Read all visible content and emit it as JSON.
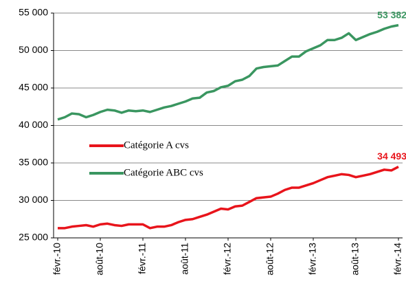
{
  "chart_data": {
    "type": "line",
    "categories": [
      "févr.-10",
      null,
      null,
      null,
      null,
      null,
      "août-10",
      null,
      null,
      null,
      null,
      null,
      "févr.-11",
      null,
      null,
      null,
      null,
      null,
      "août-11",
      null,
      null,
      null,
      null,
      null,
      "févr.-12",
      null,
      null,
      null,
      null,
      null,
      "août-12",
      null,
      null,
      null,
      null,
      null,
      "févr.-13",
      null,
      null,
      null,
      null,
      null,
      "août-13",
      null,
      null,
      null,
      null,
      null,
      "févr.-14"
    ],
    "series": [
      {
        "name": "Catégorie A cvs",
        "color": "#e8141b",
        "values": [
          26300,
          26300,
          26500,
          26600,
          26700,
          26500,
          26800,
          26900,
          26700,
          26600,
          26800,
          26800,
          26800,
          26300,
          26500,
          26500,
          26700,
          27100,
          27400,
          27500,
          27800,
          28100,
          28500,
          28900,
          28800,
          29200,
          29300,
          29800,
          30300,
          30400,
          30500,
          30900,
          31400,
          31700,
          31700,
          32000,
          32300,
          32700,
          33100,
          33300,
          33500,
          33400,
          33100,
          33300,
          33500,
          33800,
          34100,
          34000,
          34493
        ],
        "value_labels": [
          null,
          null,
          null,
          null,
          null,
          null,
          null,
          null,
          null,
          null,
          null,
          null,
          null,
          null,
          null,
          null,
          null,
          null,
          null,
          null,
          null,
          null,
          null,
          null,
          null,
          null,
          null,
          null,
          null,
          null,
          null,
          null,
          null,
          null,
          null,
          null,
          null,
          null,
          null,
          null,
          null,
          null,
          null,
          null,
          null,
          null,
          null,
          null,
          "34 493"
        ]
      },
      {
        "name": "Catégorie ABC cvs",
        "color": "#3a9660",
        "values": [
          40800,
          41100,
          41600,
          41500,
          41100,
          41400,
          41800,
          42100,
          42000,
          41700,
          42000,
          41900,
          42000,
          41800,
          42100,
          42400,
          42600,
          42900,
          43200,
          43600,
          43700,
          44400,
          44600,
          45100,
          45300,
          45900,
          46100,
          46600,
          47600,
          47800,
          47900,
          48000,
          48600,
          49200,
          49200,
          49900,
          50300,
          50700,
          51400,
          51400,
          51700,
          52300,
          51400,
          51800,
          52200,
          52500,
          52900,
          53200,
          53382
        ],
        "value_labels": [
          null,
          null,
          null,
          null,
          null,
          null,
          null,
          null,
          null,
          null,
          null,
          null,
          null,
          null,
          null,
          null,
          null,
          null,
          null,
          null,
          null,
          null,
          null,
          null,
          null,
          null,
          null,
          null,
          null,
          null,
          null,
          null,
          null,
          null,
          null,
          null,
          null,
          null,
          null,
          null,
          null,
          null,
          null,
          null,
          null,
          null,
          null,
          null,
          "53 382"
        ]
      }
    ],
    "ylim": [
      25000,
      55000
    ],
    "yticks": [
      {
        "value": 25000,
        "label": "25 000"
      },
      {
        "value": 30000,
        "label": "30 000"
      },
      {
        "value": 35000,
        "label": "35 000"
      },
      {
        "value": 40000,
        "label": "40 000"
      },
      {
        "value": 45000,
        "label": "45 000"
      },
      {
        "value": 50000,
        "label": "50 000"
      },
      {
        "value": 55000,
        "label": "55 000"
      }
    ],
    "grid": true,
    "legend": "left"
  }
}
